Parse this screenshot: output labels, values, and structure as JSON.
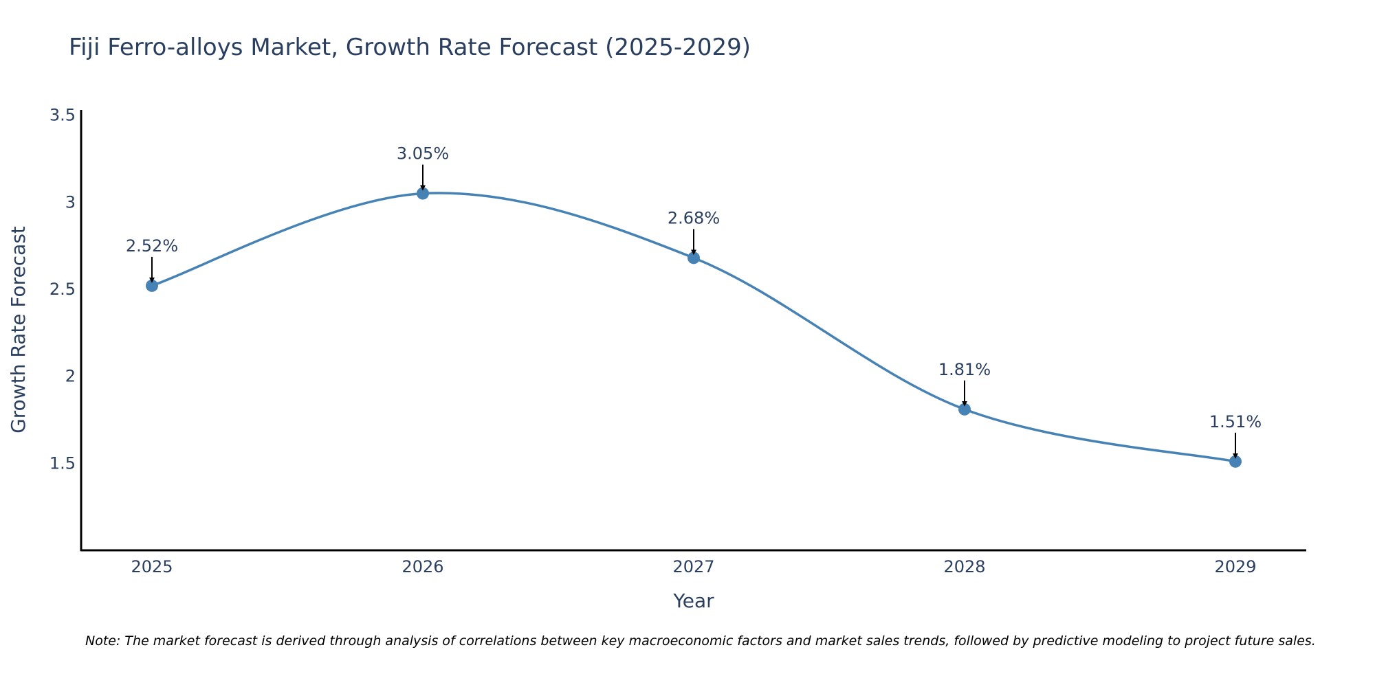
{
  "chart_data": {
    "type": "line",
    "title": "Fiji Ferro-alloys Market, Growth Rate Forecast (2025-2029)",
    "xlabel": "Year",
    "ylabel": "Growth Rate Forecast",
    "categories": [
      "2025",
      "2026",
      "2027",
      "2028",
      "2029"
    ],
    "series": [
      {
        "name": "Growth Rate Forecast",
        "values": [
          2.52,
          3.05,
          2.68,
          1.81,
          1.51
        ]
      }
    ],
    "data_labels": [
      "2.52%",
      "3.05%",
      "2.68%",
      "1.81%",
      "1.51%"
    ],
    "ylim": [
      1.0,
      3.53
    ],
    "yticks": [
      1.5,
      2,
      2.5,
      3,
      3.5
    ],
    "ytick_labels": [
      "1.5",
      "2",
      "2.5",
      "3",
      "3.5"
    ],
    "grid": false,
    "line_color": "#4682b4",
    "marker_color": "#4682b4",
    "arrow_color": "#000000",
    "text_color": "#2a3f5f"
  },
  "note": "Note: The market forecast is derived through analysis of correlations between key macroeconomic factors and market sales trends, followed by predictive modeling to project future sales."
}
